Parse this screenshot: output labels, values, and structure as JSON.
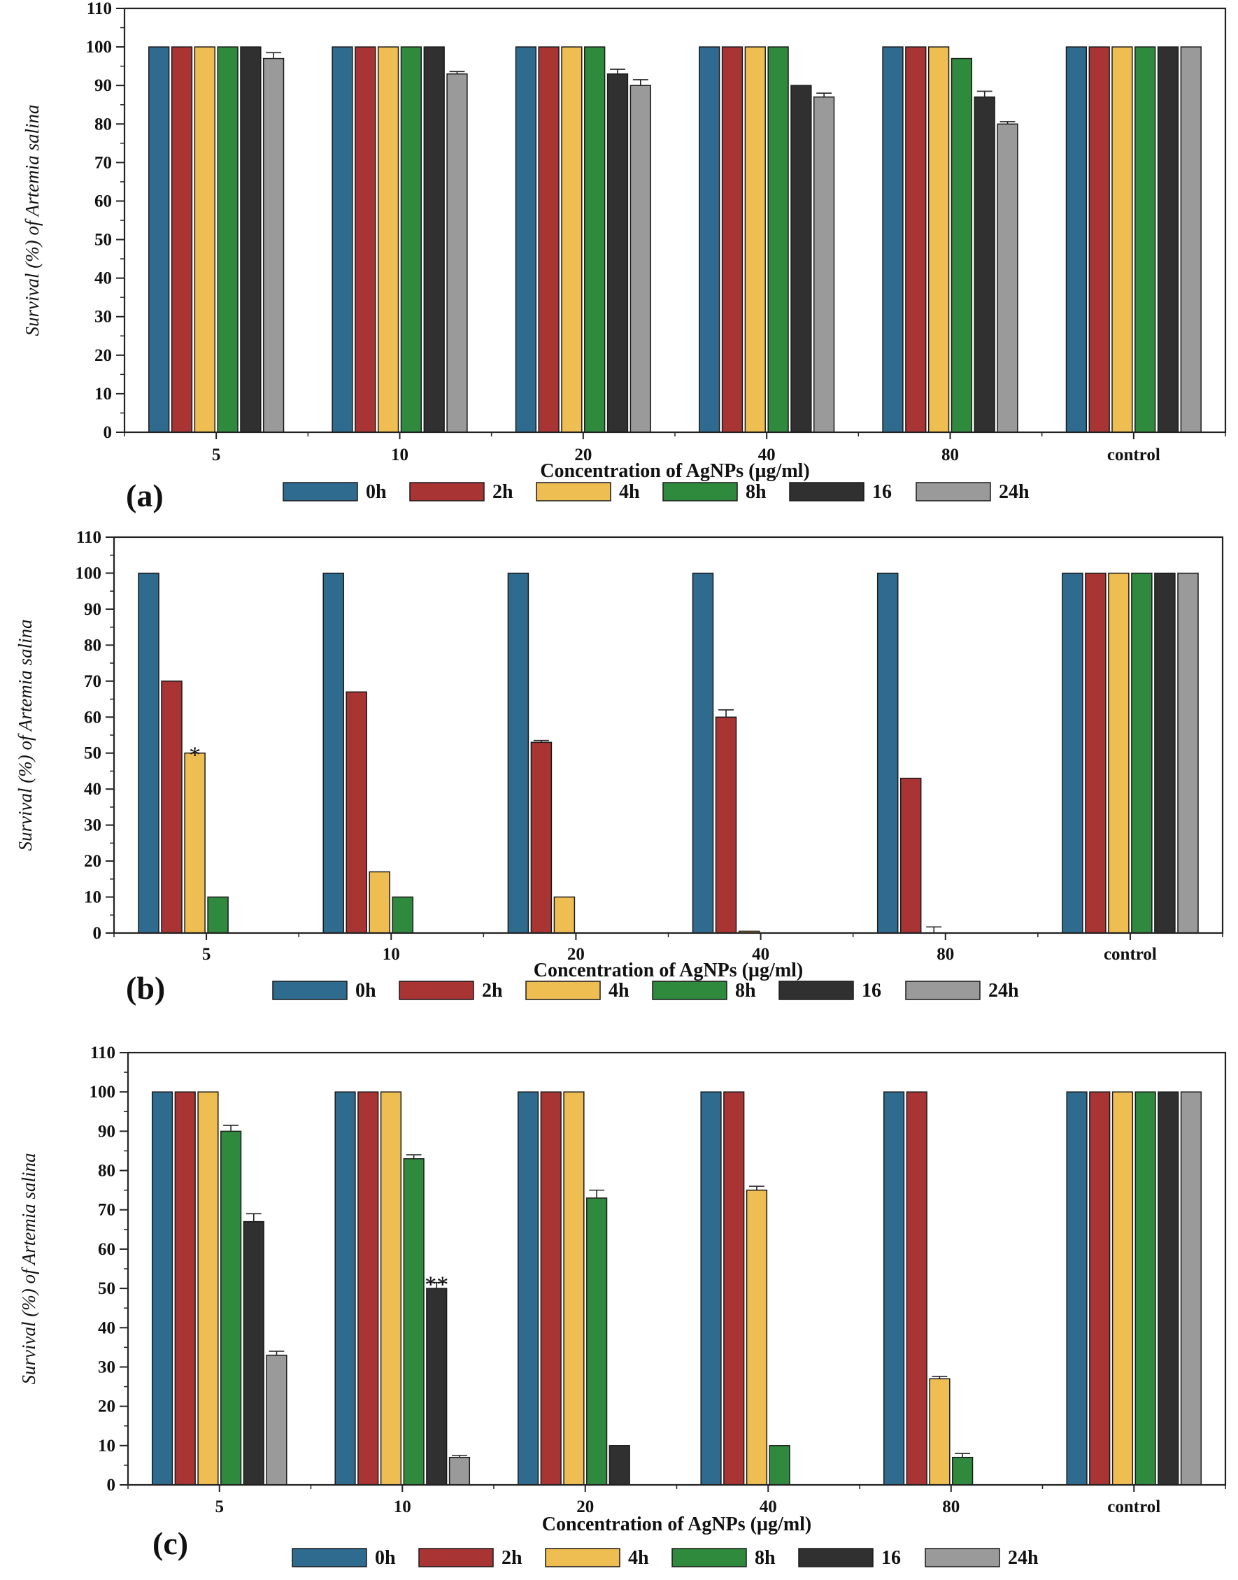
{
  "colors": {
    "series": [
      "#2e6b8f",
      "#a83434",
      "#efbe52",
      "#2f8a3e",
      "#303030",
      "#9a9a9a"
    ],
    "bar_stroke": "#1a1a1a",
    "axis": "#222222",
    "errorbar": "#222222"
  },
  "chart_data": [
    {
      "type": "bar",
      "panel_label": "(a)",
      "xlabel": "Concentration of AgNPs (µg/ml)",
      "ylabel": "Survival (%) of Artemia salina",
      "ylim": [
        0,
        110
      ],
      "yticks": [
        0,
        10,
        20,
        30,
        40,
        50,
        60,
        70,
        80,
        90,
        100,
        110
      ],
      "legend_position": "bottom",
      "categories": [
        "5",
        "10",
        "20",
        "40",
        "80",
        "control"
      ],
      "series": [
        {
          "name": "0h",
          "values": [
            100,
            100,
            100,
            100,
            100,
            100
          ],
          "errors": [
            0,
            0,
            0,
            0,
            0,
            0
          ]
        },
        {
          "name": "2h",
          "values": [
            100,
            100,
            100,
            100,
            100,
            100
          ],
          "errors": [
            0,
            0,
            0,
            0,
            0,
            0
          ]
        },
        {
          "name": "4h",
          "values": [
            100,
            100,
            100,
            100,
            100,
            100
          ],
          "errors": [
            0,
            0,
            0,
            0,
            0,
            0
          ]
        },
        {
          "name": "8h",
          "values": [
            100,
            100,
            100,
            100,
            97,
            100
          ],
          "errors": [
            0,
            0,
            0,
            0,
            0,
            0
          ]
        },
        {
          "name": "16",
          "values": [
            100,
            100,
            93,
            90,
            87,
            100
          ],
          "errors": [
            0,
            0,
            1.2,
            0,
            1.5,
            0
          ]
        },
        {
          "name": "24h",
          "values": [
            97,
            93,
            90,
            87,
            80,
            100
          ],
          "errors": [
            1.5,
            0.6,
            1.5,
            1,
            0.6,
            0
          ]
        }
      ],
      "annotations": []
    },
    {
      "type": "bar",
      "panel_label": "(b)",
      "xlabel": "Concentration of AgNPs (µg/ml)",
      "ylabel": "Survival (%) of Artemia salina",
      "ylim": [
        0,
        110
      ],
      "yticks": [
        0,
        10,
        20,
        30,
        40,
        50,
        60,
        70,
        80,
        90,
        100,
        110
      ],
      "legend_position": "bottom",
      "categories": [
        "5",
        "10",
        "20",
        "40",
        "80",
        "control"
      ],
      "series": [
        {
          "name": "0h",
          "values": [
            100,
            100,
            100,
            100,
            100,
            100
          ],
          "errors": [
            0,
            0,
            0,
            0,
            0,
            0
          ]
        },
        {
          "name": "2h",
          "values": [
            70,
            67,
            53,
            60,
            43,
            100
          ],
          "errors": [
            0,
            0,
            0.5,
            2,
            0,
            0
          ]
        },
        {
          "name": "4h",
          "values": [
            50,
            17,
            10,
            0.5,
            0,
            100
          ],
          "errors": [
            0,
            0,
            0,
            0,
            1.7,
            0
          ]
        },
        {
          "name": "8h",
          "values": [
            10,
            10,
            0,
            0,
            0,
            100
          ],
          "errors": [
            0,
            0,
            0,
            0,
            0,
            0
          ]
        },
        {
          "name": "16",
          "values": [
            0,
            0,
            0,
            0,
            0,
            100
          ],
          "errors": [
            0,
            0,
            0,
            0,
            0,
            0
          ]
        },
        {
          "name": "24h",
          "values": [
            0,
            0,
            0,
            0,
            0,
            100
          ],
          "errors": [
            0,
            0,
            0,
            0,
            0,
            0
          ]
        }
      ],
      "annotations": [
        {
          "text": "*",
          "category": 0,
          "series": 2
        }
      ]
    },
    {
      "type": "bar",
      "panel_label": "(c)",
      "xlabel": "Concentration of AgNPs (µg/ml)",
      "ylabel": "Survival (%) of Artemia salina",
      "ylim": [
        0,
        110
      ],
      "yticks": [
        0,
        10,
        20,
        30,
        40,
        50,
        60,
        70,
        80,
        90,
        100,
        110
      ],
      "legend_position": "bottom",
      "categories": [
        "5",
        "10",
        "20",
        "40",
        "80",
        "control"
      ],
      "series": [
        {
          "name": "0h",
          "values": [
            100,
            100,
            100,
            100,
            100,
            100
          ],
          "errors": [
            0,
            0,
            0,
            0,
            0,
            0
          ]
        },
        {
          "name": "2h",
          "values": [
            100,
            100,
            100,
            100,
            100,
            100
          ],
          "errors": [
            0,
            0,
            0,
            0,
            0,
            0
          ]
        },
        {
          "name": "4h",
          "values": [
            100,
            100,
            100,
            75,
            27,
            100
          ],
          "errors": [
            0,
            0,
            0,
            1,
            0.6,
            0
          ]
        },
        {
          "name": "8h",
          "values": [
            90,
            83,
            73,
            10,
            7,
            100
          ],
          "errors": [
            1.5,
            1,
            2,
            0,
            1,
            0
          ]
        },
        {
          "name": "16",
          "values": [
            67,
            50,
            10,
            0,
            0,
            100
          ],
          "errors": [
            2,
            1.5,
            0,
            0,
            0,
            0
          ]
        },
        {
          "name": "24h",
          "values": [
            33,
            7,
            0,
            0,
            0,
            100
          ],
          "errors": [
            1,
            0.5,
            0,
            0,
            0,
            0
          ]
        }
      ],
      "annotations": [
        {
          "text": "**",
          "category": 1,
          "series": 4
        }
      ]
    }
  ]
}
